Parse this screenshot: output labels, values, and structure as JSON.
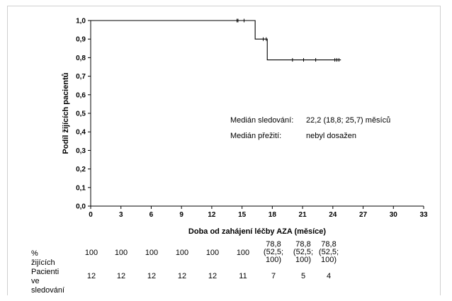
{
  "chart_data": {
    "type": "line",
    "subtype": "kaplan-meier",
    "title": "",
    "xlabel": "Doba od zahájení léčby AZA (měsíce)",
    "ylabel": "Podíl žijících pacientů",
    "xlim": [
      0,
      33
    ],
    "ylim": [
      0,
      1.0
    ],
    "x_ticks": [
      "0",
      "3",
      "6",
      "9",
      "12",
      "15",
      "18",
      "21",
      "24",
      "27",
      "30",
      "33"
    ],
    "y_ticks": [
      "0,0",
      "0,1",
      "0,2",
      "0,3",
      "0,4",
      "0,5",
      "0,6",
      "0,7",
      "0,8",
      "0,9",
      "1,0"
    ],
    "grid": false,
    "series": [
      {
        "steps": [
          {
            "x": 0,
            "y": 1.0
          },
          {
            "x": 16.3,
            "y": 0.9
          },
          {
            "x": 17.5,
            "y": 0.788
          }
        ],
        "end_x": 24.8,
        "censored": [
          {
            "x": 14.5,
            "y": 1.0
          },
          {
            "x": 14.6,
            "y": 1.0
          },
          {
            "x": 15.2,
            "y": 1.0
          },
          {
            "x": 17.1,
            "y": 0.9
          },
          {
            "x": 17.4,
            "y": 0.9
          },
          {
            "x": 20.0,
            "y": 0.788
          },
          {
            "x": 21.1,
            "y": 0.788
          },
          {
            "x": 22.3,
            "y": 0.788
          },
          {
            "x": 24.2,
            "y": 0.788
          },
          {
            "x": 24.4,
            "y": 0.788
          },
          {
            "x": 24.6,
            "y": 0.788
          }
        ]
      }
    ],
    "annotations": [
      {
        "label": "Medián sledování:",
        "value": "22,2 (18,8; 25,7) měsíců"
      },
      {
        "label": "Medián přežití:",
        "value": "nebyl dosažen"
      }
    ]
  },
  "risk_table": {
    "rows": [
      {
        "label": "% žijících",
        "values": [
          "100",
          "100",
          "100",
          "100",
          "100",
          "100",
          "78,8\n(52,5;\n100)",
          "78,8\n(52,5;\n100)",
          "78,8\n(52,5;\n100)"
        ]
      },
      {
        "label": "Pacienti ve\nsledování",
        "values": [
          "12",
          "12",
          "12",
          "12",
          "12",
          "11",
          "7",
          "5",
          "4"
        ]
      }
    ]
  },
  "colors": {
    "line": "#000000",
    "frame": "#cfcfcf"
  }
}
